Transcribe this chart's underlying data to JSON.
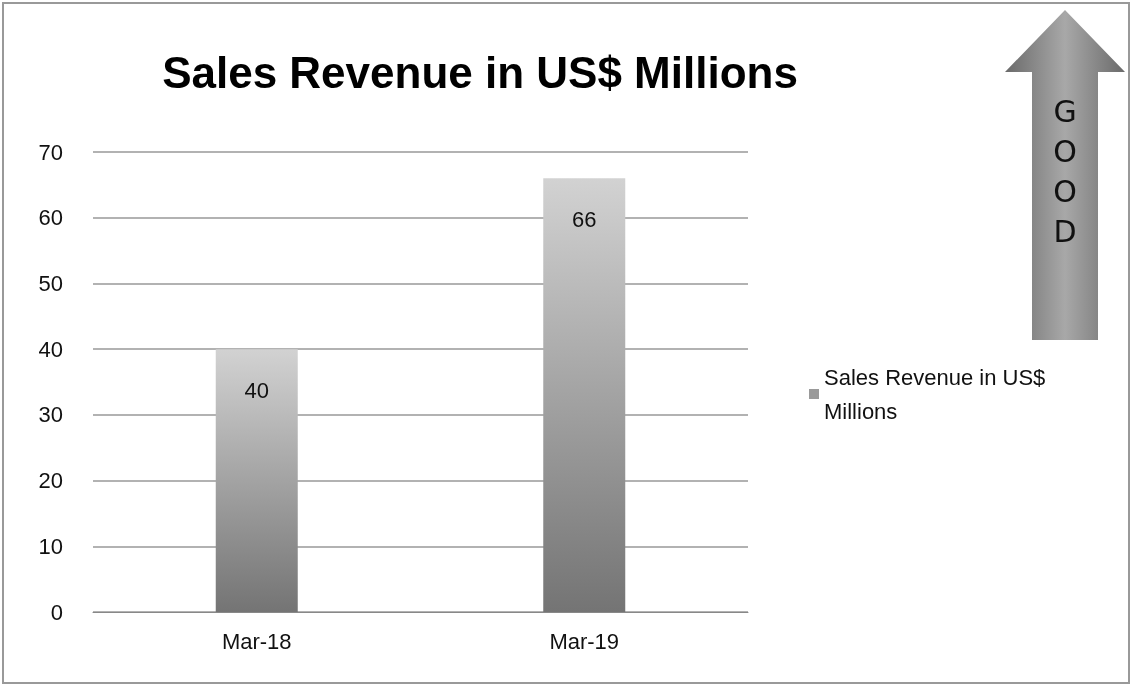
{
  "chart_data": {
    "type": "bar",
    "title": "Sales Revenue in US$ Millions",
    "categories": [
      "Mar-18",
      "Mar-19"
    ],
    "series": [
      {
        "name": "Sales Revenue in US$ Millions",
        "color": "#9a9a9a",
        "values": [
          40,
          66
        ]
      }
    ],
    "ylim": [
      0,
      70
    ],
    "yticks": [
      0,
      10,
      20,
      30,
      40,
      50,
      60,
      70
    ],
    "grid": "y",
    "legend": "right",
    "data_labels": true,
    "annotations": [
      "GOOD"
    ]
  }
}
